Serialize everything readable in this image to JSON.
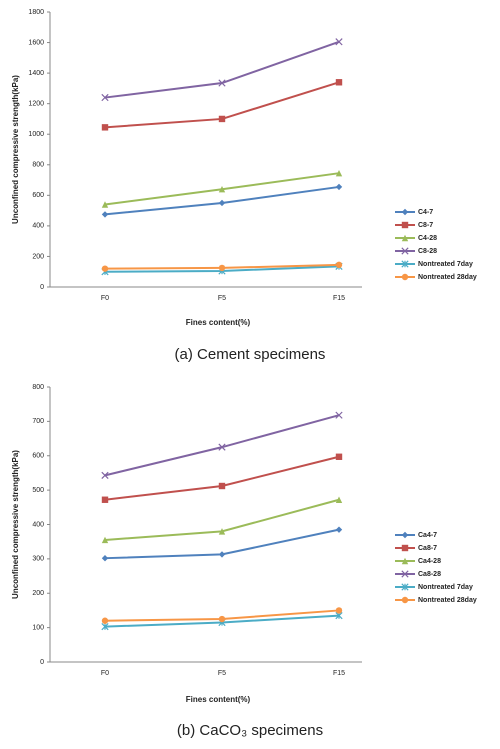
{
  "chart_data": [
    {
      "type": "line",
      "caption": "(a) Cement specimens",
      "x_label": "Fines content(%)",
      "y_label": "Unconfined compressive strength(kPa)",
      "categories": [
        "F0",
        "F5",
        "F15"
      ],
      "ylim": [
        0,
        1800
      ],
      "yticks": [
        0,
        200,
        400,
        600,
        800,
        1000,
        1200,
        1400,
        1600,
        1800
      ],
      "series": [
        {
          "name": "C4-7",
          "color": "#4f81bd",
          "values": [
            475,
            550,
            655
          ]
        },
        {
          "name": "C8-7",
          "color": "#c0504d",
          "values": [
            1045,
            1100,
            1340
          ]
        },
        {
          "name": "C4-28",
          "color": "#9bbb59",
          "values": [
            540,
            640,
            745
          ]
        },
        {
          "name": "C8-28",
          "color": "#8064a2",
          "values": [
            1240,
            1335,
            1605
          ]
        },
        {
          "name": "Nontreated 7day",
          "color": "#4bacc6",
          "values": [
            100,
            105,
            135
          ]
        },
        {
          "name": "Nontreated 28day",
          "color": "#f79646",
          "values": [
            120,
            125,
            145
          ]
        }
      ]
    },
    {
      "type": "line",
      "caption": "(b) CaCO₃ specimens",
      "x_label": "Fines content(%)",
      "y_label": "Unconfined compressive strength(kPa)",
      "categories": [
        "F0",
        "F5",
        "F15"
      ],
      "ylim": [
        0,
        800
      ],
      "yticks": [
        0,
        100,
        200,
        300,
        400,
        500,
        600,
        700,
        800
      ],
      "series": [
        {
          "name": "Ca4-7",
          "color": "#4f81bd",
          "values": [
            302,
            313,
            385
          ]
        },
        {
          "name": "Ca8-7",
          "color": "#c0504d",
          "values": [
            472,
            512,
            597
          ]
        },
        {
          "name": "Ca4-28",
          "color": "#9bbb59",
          "values": [
            355,
            380,
            472
          ]
        },
        {
          "name": "Ca8-28",
          "color": "#8064a2",
          "values": [
            543,
            625,
            718
          ]
        },
        {
          "name": "Nontreated 7day",
          "color": "#4bacc6",
          "values": [
            103,
            115,
            135
          ]
        },
        {
          "name": "Nontreated 28day",
          "color": "#f79646",
          "values": [
            120,
            125,
            150
          ]
        }
      ]
    }
  ]
}
